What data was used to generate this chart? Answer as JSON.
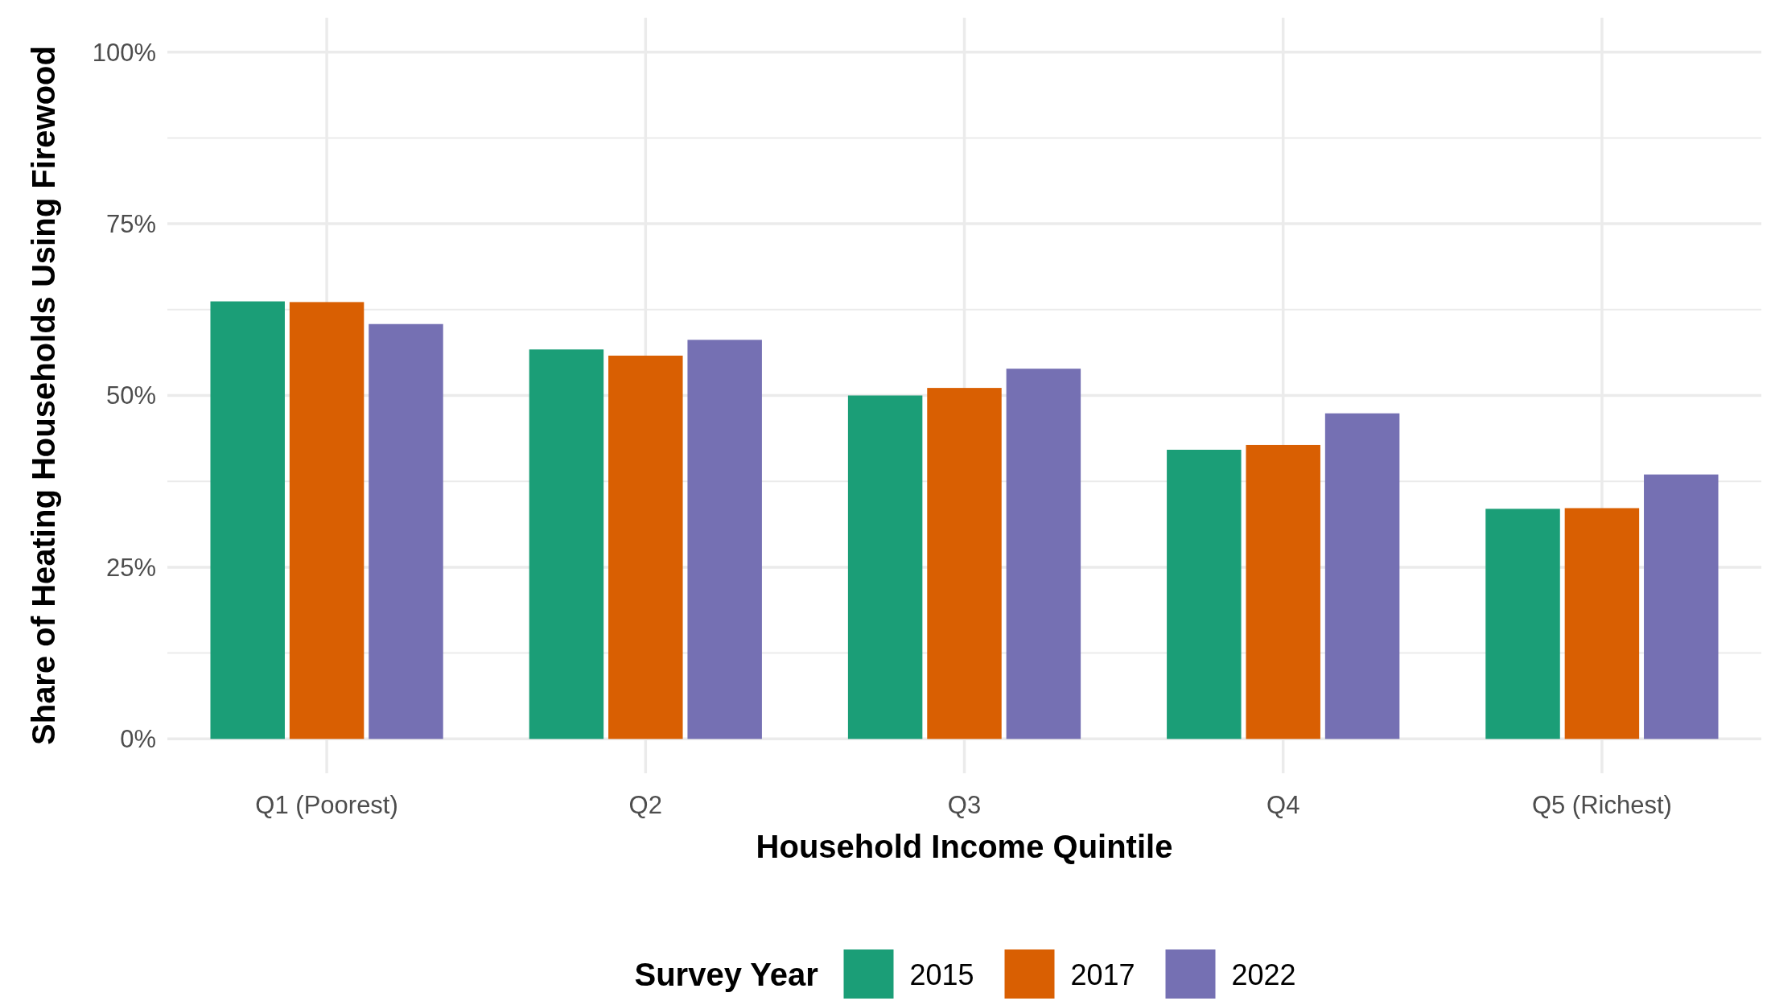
{
  "chart_data": {
    "type": "bar",
    "xlabel": "Household Income Quintile",
    "ylabel": "Share of Heating Households Using Firewood",
    "legend_title": "Survey Year",
    "categories": [
      "Q1 (Poorest)",
      "Q2",
      "Q3",
      "Q4",
      "Q5 (Richest)"
    ],
    "series": [
      {
        "name": "2015",
        "color": "#1b9e77",
        "values": [
          63.7,
          56.7,
          50.0,
          42.1,
          33.5
        ]
      },
      {
        "name": "2017",
        "color": "#d95f02",
        "values": [
          63.6,
          55.8,
          51.1,
          42.8,
          33.6
        ]
      },
      {
        "name": "2022",
        "color": "#7570b3",
        "values": [
          60.4,
          58.1,
          53.9,
          47.4,
          38.5
        ]
      }
    ],
    "ylim": [
      -5,
      105
    ],
    "yticks": [
      {
        "value": 0,
        "label": "0%"
      },
      {
        "value": 12.5,
        "label": null
      },
      {
        "value": 25,
        "label": "25%"
      },
      {
        "value": 37.5,
        "label": null
      },
      {
        "value": 50,
        "label": "50%"
      },
      {
        "value": 62.5,
        "label": null
      },
      {
        "value": 75,
        "label": "75%"
      },
      {
        "value": 87.5,
        "label": null
      },
      {
        "value": 100,
        "label": "100%"
      }
    ],
    "grid": true,
    "legend": "bottom"
  }
}
